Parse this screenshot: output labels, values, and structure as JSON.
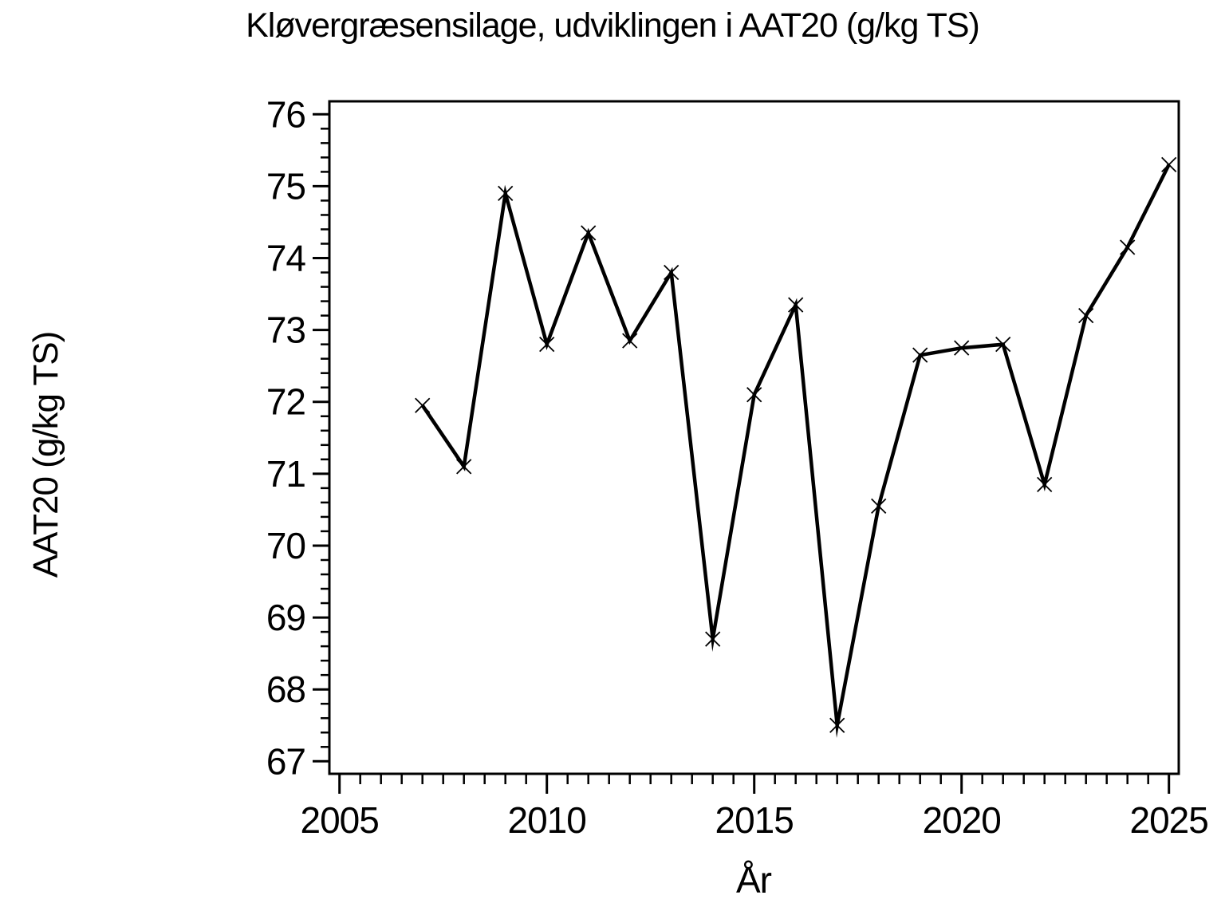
{
  "chart_data": {
    "type": "line",
    "title": "Kløvergræsensilage,  udviklingen  i  AAT20  (g/kg  TS)",
    "xlabel": "År",
    "ylabel": "AAT20  (g/kg  TS)",
    "series": [
      {
        "name": "AAT20",
        "x": [
          2007,
          2008,
          2009,
          2010,
          2011,
          2012,
          2013,
          2014,
          2015,
          2016,
          2017,
          2018,
          2019,
          2020,
          2021,
          2022,
          2023,
          2024,
          2025
        ],
        "values": [
          71.95,
          71.1,
          74.9,
          72.8,
          74.35,
          72.85,
          73.8,
          68.7,
          72.1,
          73.35,
          67.5,
          70.55,
          72.65,
          72.75,
          72.8,
          70.85,
          73.2,
          74.15,
          75.3
        ]
      }
    ],
    "xlim": [
      2005,
      2025
    ],
    "ylim": [
      67,
      76
    ],
    "x_major_ticks": [
      2005,
      2010,
      2015,
      2020,
      2025
    ],
    "x_tick_labels": [
      "2005",
      "2010",
      "2015",
      "2020",
      "2025"
    ],
    "y_major_ticks": [
      67,
      68,
      69,
      70,
      71,
      72,
      73,
      74,
      75,
      76
    ],
    "y_tick_labels": [
      "67",
      "68",
      "69",
      "70",
      "71",
      "72",
      "73",
      "74",
      "75",
      "76"
    ],
    "x_minor_step": 0.5,
    "y_minor_step": 0.2,
    "marker": "x",
    "grid": false,
    "legend_position": "none",
    "line_color": "#000000",
    "background_color": "#ffffff"
  }
}
